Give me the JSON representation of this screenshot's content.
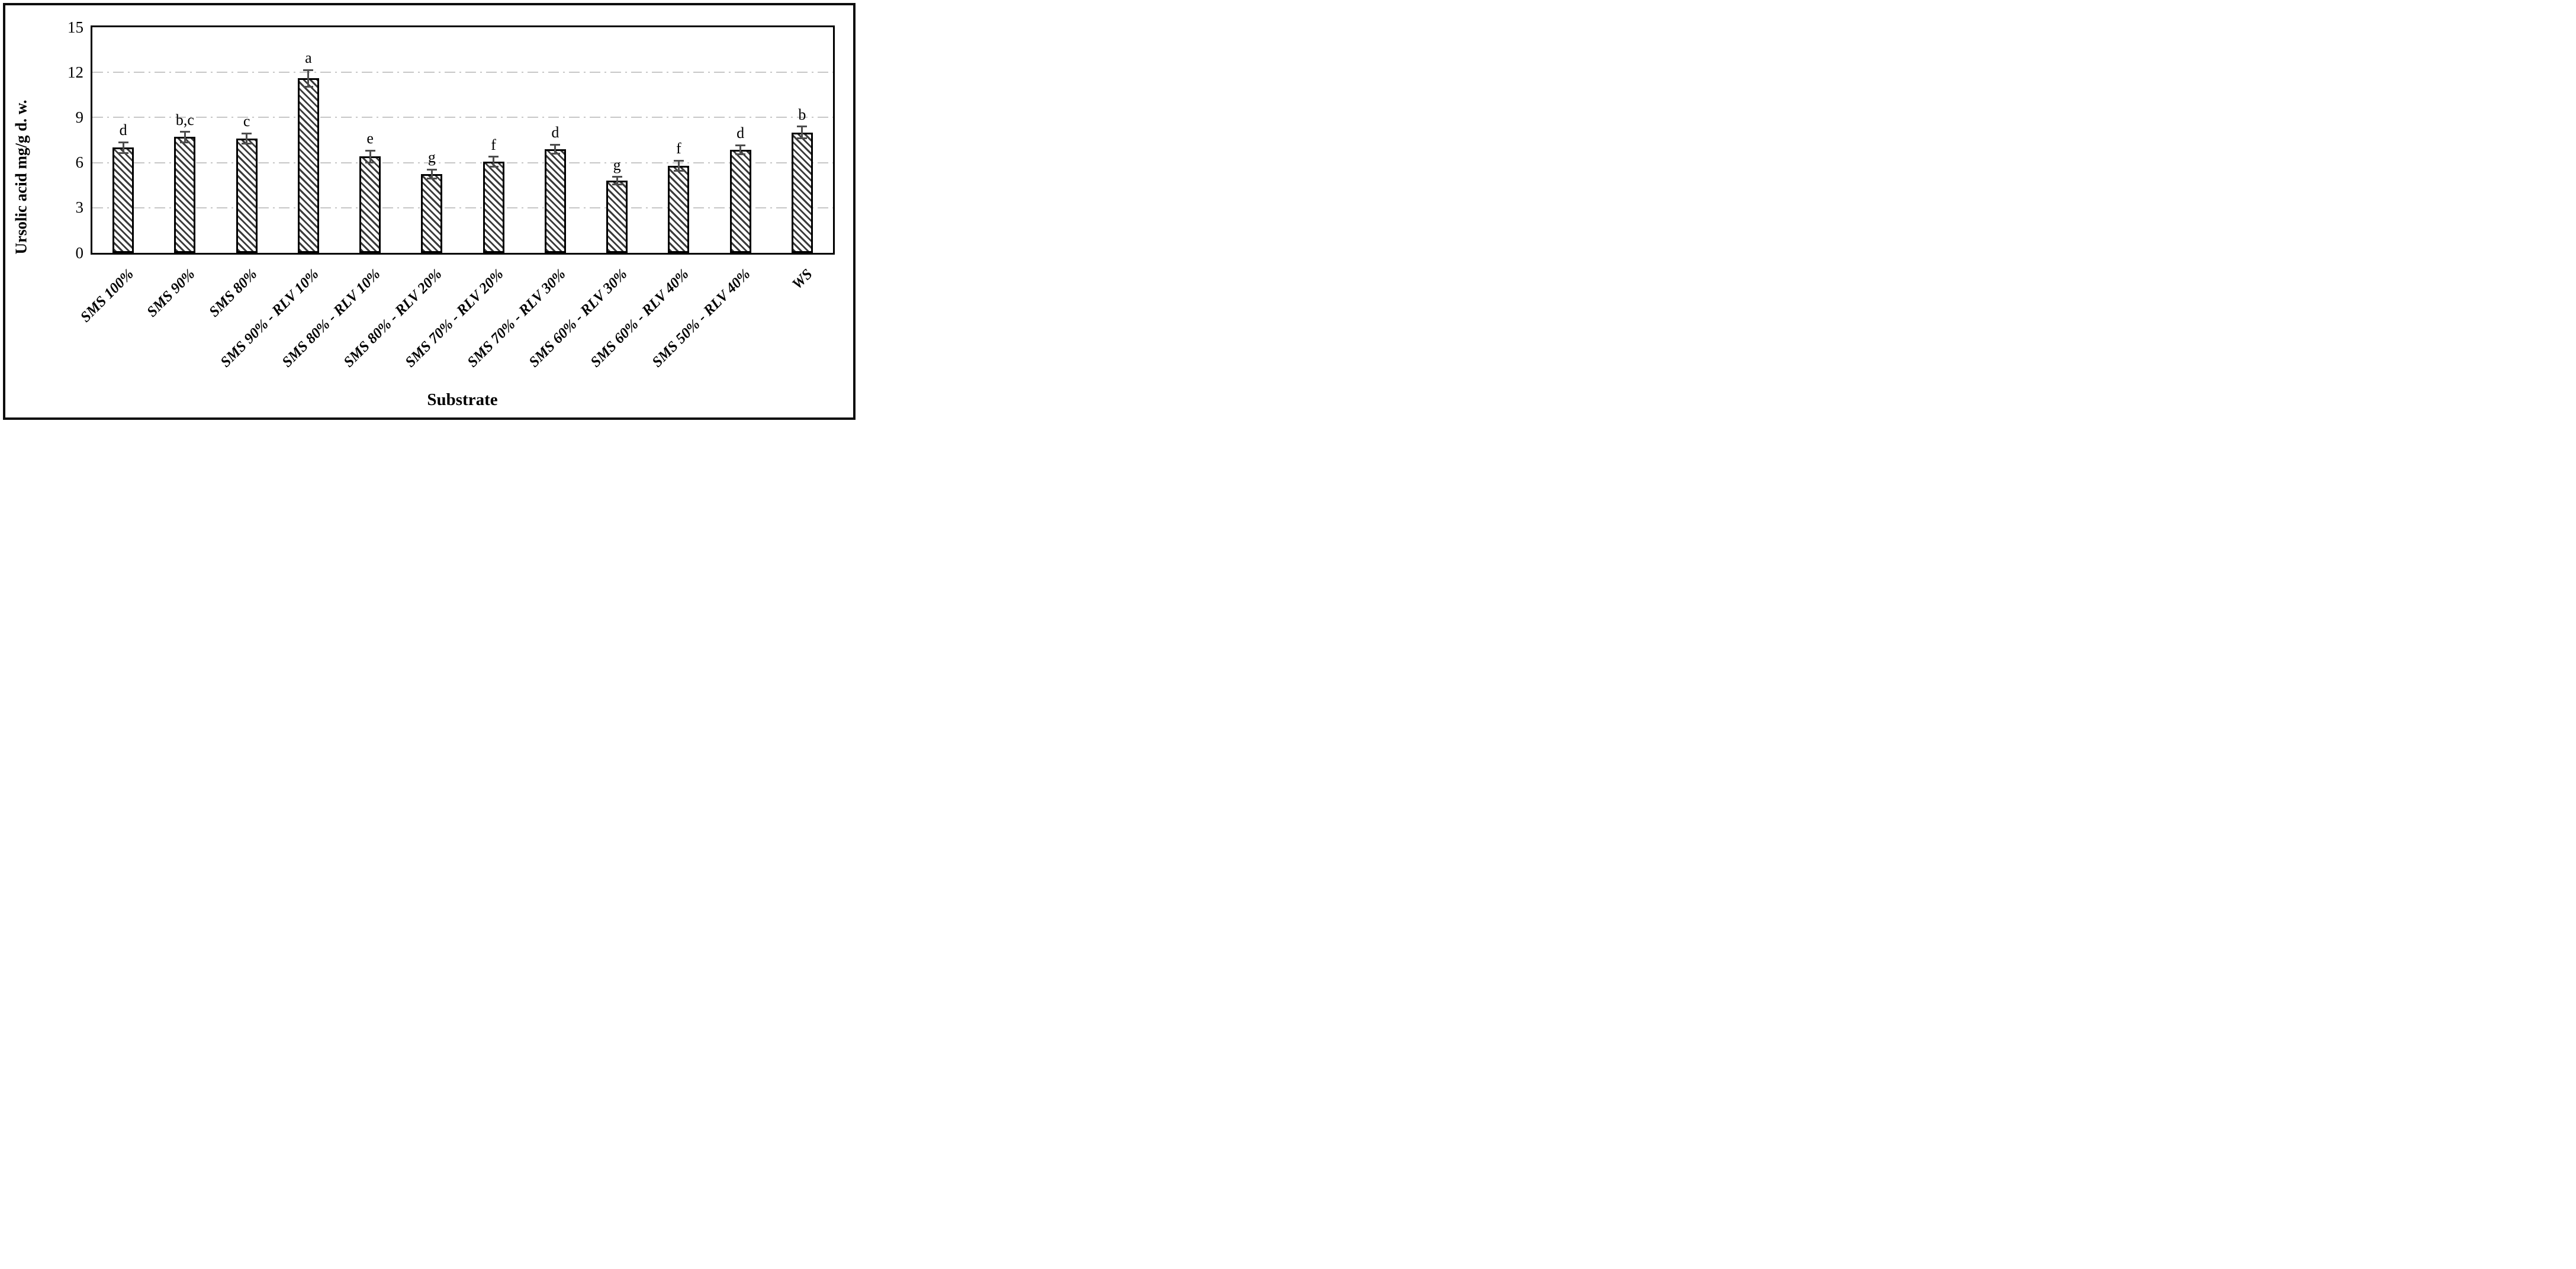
{
  "chart_data": {
    "type": "bar",
    "title": "",
    "xlabel": "Substrate",
    "ylabel": "Ursolic acid mg/g d. w.",
    "ylim": [
      0,
      15
    ],
    "yticks": [
      0,
      3,
      6,
      9,
      12,
      15
    ],
    "grid": {
      "axis": "y",
      "values": [
        3,
        6,
        9,
        12
      ],
      "style": "dash-dot",
      "color": "#c7c7c7"
    },
    "legend": "none",
    "categories": [
      "SMS 100%",
      "SMS 90%",
      "SMS 80%",
      "SMS 90% - RLV 10%",
      "SMS 80% - RLV 10%",
      "SMS 80% - RLV 20%",
      "SMS 70% - RLV 20%",
      "SMS 70% - RLV 30%",
      "SMS 60% - RLV 30%",
      "SMS 60% - RLV 40%",
      "SMS 50% - RLV 40%",
      "WS"
    ],
    "values": [
      7.0,
      7.7,
      7.6,
      11.6,
      6.4,
      5.25,
      6.05,
      6.9,
      4.8,
      5.8,
      6.85,
      8.0
    ],
    "errors": [
      0.35,
      0.35,
      0.35,
      0.55,
      0.4,
      0.3,
      0.33,
      0.3,
      0.25,
      0.33,
      0.3,
      0.4
    ],
    "significance_letters": [
      "d",
      "b,c",
      "c",
      "a",
      "e",
      "g",
      "f",
      "d",
      "g",
      "f",
      "d",
      "b"
    ],
    "bar_style": {
      "fill": "#ffffff",
      "hatch": "diagonal-down",
      "hatch_color": "#3a3a3a",
      "border_color": "#000000"
    },
    "error_bar_color": "#4d4d4d"
  }
}
